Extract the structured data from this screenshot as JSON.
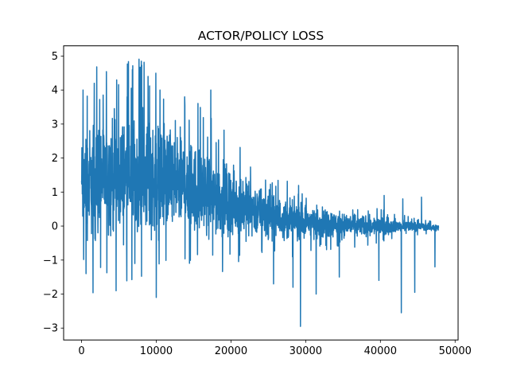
{
  "chart_data": {
    "type": "line",
    "title": "ACTOR/POLICY LOSS",
    "xlabel": "",
    "ylabel": "",
    "xlim": [
      -2400,
      50400
    ],
    "ylim": [
      -3.35,
      5.3
    ],
    "x_ticks": [
      0,
      10000,
      20000,
      30000,
      40000,
      50000
    ],
    "x_tick_labels": [
      "0",
      "10000",
      "20000",
      "30000",
      "40000",
      "50000"
    ],
    "y_ticks": [
      -3,
      -2,
      -1,
      0,
      1,
      2,
      3,
      4,
      5
    ],
    "y_tick_labels": [
      "−3",
      "−2",
      "−1",
      "0",
      "1",
      "2",
      "3",
      "4",
      "5"
    ],
    "grid": false,
    "legend": "none",
    "series_color": "#1f77b4",
    "series": [
      {
        "x_start": 0,
        "x_end": 47800,
        "n_points": 48000,
        "envelope_x": [
          0,
          2000,
          5000,
          8000,
          11000,
          14000,
          17000,
          20000,
          23000,
          26000,
          29000,
          32000,
          35000,
          38000,
          41000,
          44000,
          47800
        ],
        "envelope_center": [
          1.2,
          1.4,
          1.5,
          1.5,
          1.4,
          1.2,
          0.9,
          0.7,
          0.5,
          0.25,
          0.15,
          0.1,
          0.05,
          0.0,
          0.0,
          0.0,
          -0.05
        ],
        "envelope_halfwidth": [
          1.7,
          1.9,
          1.9,
          1.9,
          1.8,
          1.6,
          1.3,
          1.1,
          0.9,
          0.7,
          0.6,
          0.5,
          0.4,
          0.35,
          0.25,
          0.15,
          0.1
        ],
        "peaks": [
          {
            "x": 8000,
            "y": 4.85
          },
          {
            "x": 200,
            "y": 4.0
          },
          {
            "x": 1700,
            "y": 4.2
          },
          {
            "x": 4700,
            "y": 4.3
          },
          {
            "x": 6800,
            "y": 4.6
          },
          {
            "x": 8900,
            "y": 4.4
          },
          {
            "x": 10500,
            "y": 4.0
          },
          {
            "x": 13800,
            "y": 3.8
          },
          {
            "x": 17300,
            "y": 4.0
          },
          {
            "x": 600,
            "y": -1.4
          },
          {
            "x": 10000,
            "y": -2.1
          },
          {
            "x": 25700,
            "y": -1.7
          },
          {
            "x": 28300,
            "y": -1.8
          },
          {
            "x": 29300,
            "y": -2.95
          },
          {
            "x": 31400,
            "y": -2.0
          },
          {
            "x": 34500,
            "y": -1.5
          },
          {
            "x": 39800,
            "y": -1.6
          },
          {
            "x": 42800,
            "y": -2.55
          },
          {
            "x": 44600,
            "y": -1.95
          },
          {
            "x": 47300,
            "y": -1.2
          },
          {
            "x": 45500,
            "y": 0.85
          },
          {
            "x": 43000,
            "y": 0.8
          },
          {
            "x": 40500,
            "y": 0.9
          }
        ]
      }
    ]
  }
}
